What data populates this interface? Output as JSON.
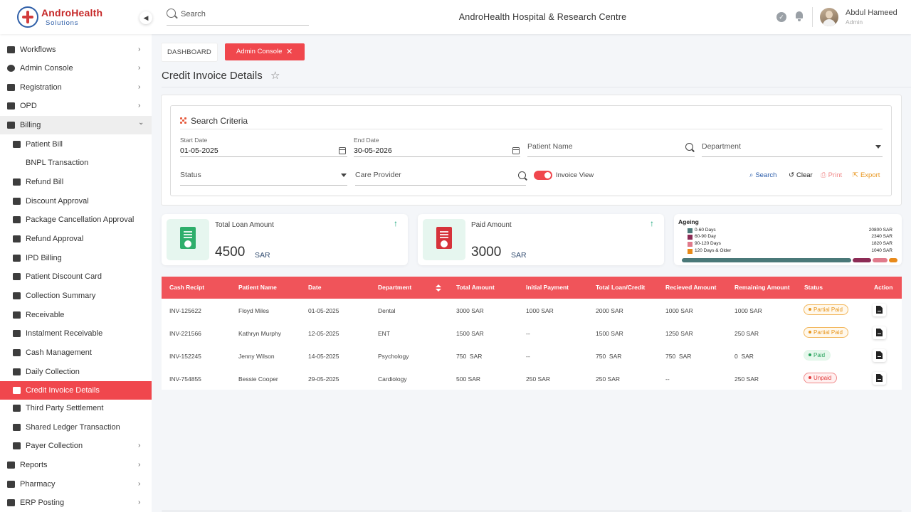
{
  "brand": {
    "name": "AndroHealth",
    "sub": "Solutions"
  },
  "header": {
    "search_placeholder": "Search",
    "org_title": "AndroHealth Hospital & Research Centre",
    "user_name": "Abdul Hameed",
    "user_role": "Admin"
  },
  "sidebar": {
    "items": [
      {
        "label": "Workflows",
        "chevron": "›"
      },
      {
        "label": "Admin Console",
        "chevron": "›"
      },
      {
        "label": "Registration",
        "chevron": "›"
      },
      {
        "label": "OPD",
        "chevron": "›"
      },
      {
        "label": "Billing",
        "chevron": "⌄"
      },
      {
        "label": "Patient Bill"
      },
      {
        "label": "BNPL Transaction"
      },
      {
        "label": "Refund Bill"
      },
      {
        "label": "Discount Approval"
      },
      {
        "label": "Package Cancellation Approval"
      },
      {
        "label": "Refund Approval"
      },
      {
        "label": "IPD Billing"
      },
      {
        "label": "Patient Discount Card"
      },
      {
        "label": "Collection Summary"
      },
      {
        "label": "Receivable"
      },
      {
        "label": "Instalment Receivable"
      },
      {
        "label": "Cash Management"
      },
      {
        "label": "Daily Collection"
      },
      {
        "label": "Credit Invoice Details"
      },
      {
        "label": "Third Party Settlement"
      },
      {
        "label": "Shared Ledger Transaction"
      },
      {
        "label": "Payer Collection",
        "chevron": "›"
      },
      {
        "label": "Reports",
        "chevron": "›"
      },
      {
        "label": "Pharmacy",
        "chevron": "›"
      },
      {
        "label": "ERP Posting",
        "chevron": "›"
      }
    ]
  },
  "breadcrumb": {
    "dashboard": "DASHBOARD",
    "admin_console": "Admin Console",
    "close": "✕"
  },
  "page": {
    "title": "Credit Invoice Details",
    "star": "☆"
  },
  "criteria": {
    "title": "Search Criteria",
    "start_date": {
      "label": "Start Date",
      "value": "01-05-2025"
    },
    "end_date": {
      "label": "End Date",
      "value": "30-05-2026"
    },
    "patient_name_placeholder": "Patient Name",
    "department_placeholder": "Department",
    "status_placeholder": "Status",
    "care_provider_placeholder": "Care Provider",
    "invoice_view_label": "Invoice View",
    "actions": {
      "search": "Search",
      "clear": "Clear",
      "print": "Print",
      "export": "Export"
    }
  },
  "cards": {
    "total_loan": {
      "label": "Total Loan Amount",
      "value": "4500",
      "unit": "SAR"
    },
    "paid": {
      "label": "Paid Amount",
      "value": "3000",
      "unit": "SAR"
    }
  },
  "ageing": {
    "title": "Ageing",
    "rows": [
      {
        "label": "0-60 Days",
        "value": "20800 SAR",
        "amount": 20800,
        "color": "#4a7878"
      },
      {
        "label": "60-90 Day",
        "value": "2340 SAR",
        "amount": 2340,
        "color": "#8c2b55"
      },
      {
        "label": "90-120 Days",
        "value": "1820 SAR",
        "amount": 1820,
        "color": "#e07a8b"
      },
      {
        "label": "120 Days & Older",
        "value": "1040 SAR",
        "amount": 1040,
        "color": "#e88a1a"
      }
    ]
  },
  "table": {
    "headers": [
      "Cash Recipt",
      "Patient Name",
      "Date",
      "Department",
      "Total Amount",
      "Initial Payment",
      "Total Loan/Credit",
      "Recieved Amount",
      "Remaining Amount",
      "Status",
      "Action"
    ],
    "rows": [
      {
        "id": "INV-125622",
        "patient": "Floyd Miles",
        "date": "01-05-2025",
        "dept": "Dental",
        "total": "3000 SAR",
        "initial": "1000 SAR",
        "loan": "2000 SAR",
        "received": "1000 SAR",
        "remaining": "1000 SAR",
        "status": "Partial Paid",
        "status_type": "partial"
      },
      {
        "id": "INV-221566",
        "patient": "Kathryn Murphy",
        "date": "12-05-2025",
        "dept": "ENT",
        "total": "1500 SAR",
        "initial": "--",
        "loan": "1500 SAR",
        "received": "1250 SAR",
        "remaining": "250 SAR",
        "status": "Partial Paid",
        "status_type": "partial"
      },
      {
        "id": "INV-152245",
        "patient": "Jenny Wilson",
        "date": "14-05-2025",
        "dept": "Psychology",
        "total": "750  SAR",
        "initial": "--",
        "loan": "750  SAR",
        "received": "750  SAR",
        "remaining": "0  SAR",
        "status": "Paid",
        "status_type": "paid"
      },
      {
        "id": "INV-754855",
        "patient": "Bessie Cooper",
        "date": "29-05-2025",
        "dept": "Cardiology",
        "total": "500 SAR",
        "initial": "250 SAR",
        "loan": "250 SAR",
        "received": "--",
        "remaining": "250 SAR",
        "status": "Unpaid",
        "status_type": "unpaid"
      }
    ]
  },
  "colors": {
    "accent": "#f0474d",
    "table_header": "#f0545a",
    "positive": "#1aa57a",
    "export": "#e8961e"
  }
}
